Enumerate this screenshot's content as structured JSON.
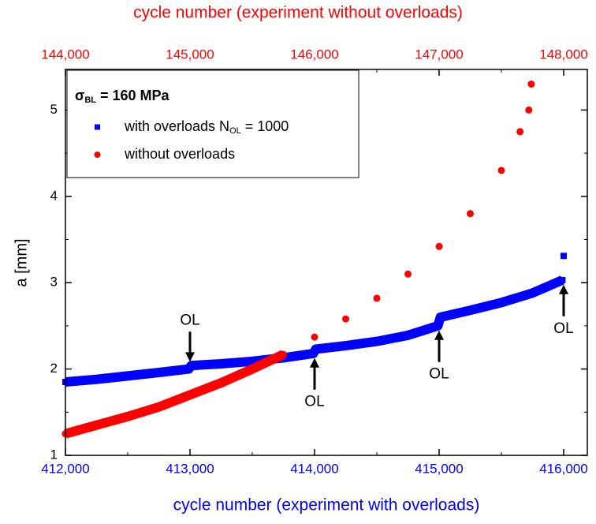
{
  "chart_data": {
    "type": "scatter",
    "xlabel": "cycle number (experiment with overloads)",
    "x2label": "cycle number (experiment without overloads)",
    "ylabel": "a [mm]",
    "xlim": [
      412000,
      416190
    ],
    "x2lim": [
      144000,
      148190
    ],
    "ylim": [
      1,
      5.47
    ],
    "xticks": [
      {
        "value": 412000,
        "label": "412,000"
      },
      {
        "value": 413000,
        "label": "413,000"
      },
      {
        "value": 414000,
        "label": "414,000"
      },
      {
        "value": 415000,
        "label": "415,000"
      },
      {
        "value": 416000,
        "label": "416,000"
      }
    ],
    "x2ticks": [
      {
        "value": 144000,
        "label": "144,000"
      },
      {
        "value": 145000,
        "label": "145,000"
      },
      {
        "value": 146000,
        "label": "146,000"
      },
      {
        "value": 147000,
        "label": "147,000"
      },
      {
        "value": 148000,
        "label": "148,000"
      }
    ],
    "yticks": [
      1,
      2,
      3,
      4,
      5
    ],
    "x_color": "#0000ff",
    "x2_color": "#ff0000",
    "legend_title": {
      "symbol": "σ",
      "subscript": "BL",
      "rest": " = 160 MPa"
    },
    "series": [
      {
        "name": "with overloads N",
        "name_subscript": "OL",
        "name_suffix": " = 1000",
        "color": "#0000ff",
        "marker": "square",
        "x": [
          412000,
          412250,
          412500,
          412750,
          412990,
          413010,
          413250,
          413500,
          413750,
          413990,
          414010,
          414250,
          414500,
          414750,
          414990,
          415010,
          415250,
          415500,
          415750,
          415990,
          416000
        ],
        "values": [
          1.85,
          1.88,
          1.92,
          1.96,
          2.0,
          2.04,
          2.06,
          2.09,
          2.13,
          2.18,
          2.23,
          2.27,
          2.32,
          2.39,
          2.5,
          2.6,
          2.68,
          2.77,
          2.88,
          3.03,
          3.31
        ]
      },
      {
        "name": "without overloads",
        "color": "#ff0000",
        "marker": "circle",
        "axis": "x2",
        "x": [
          144000,
          144250,
          144500,
          144750,
          145000,
          145250,
          145500,
          145750,
          146000,
          146250,
          146500,
          146750,
          147000,
          147250,
          147500,
          147650,
          147720,
          147740
        ],
        "values": [
          1.25,
          1.35,
          1.45,
          1.56,
          1.7,
          1.84,
          2.0,
          2.17,
          2.37,
          2.58,
          2.82,
          3.1,
          3.42,
          3.8,
          4.3,
          4.75,
          5.0,
          5.3
        ]
      }
    ],
    "annotations": [
      {
        "text": "OL",
        "x": 413000,
        "y": 2.03,
        "direction": "down"
      },
      {
        "text": "OL",
        "x": 414000,
        "y": 2.2,
        "direction": "up"
      },
      {
        "text": "OL",
        "x": 415000,
        "y": 2.52,
        "direction": "up"
      },
      {
        "text": "OL",
        "x": 416000,
        "y": 3.05,
        "direction": "up"
      }
    ]
  }
}
